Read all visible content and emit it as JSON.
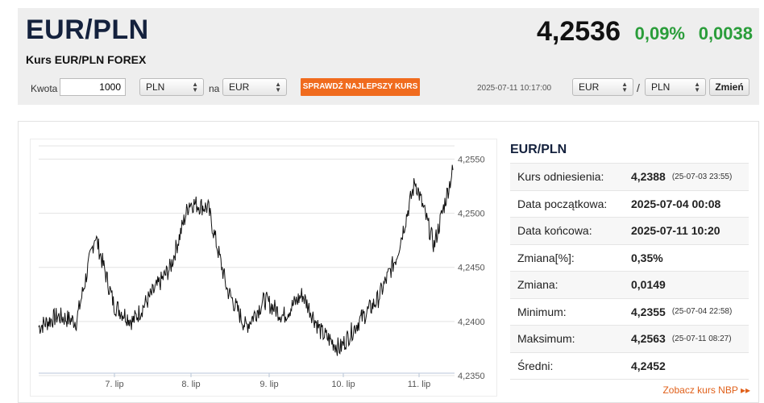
{
  "header": {
    "pair": "EUR/PLN",
    "subtitle": "Kurs EUR/PLN FOREX",
    "price": "4,2536",
    "change_pct": "0,09%",
    "change_abs": "0,0038"
  },
  "converter": {
    "amount_label": "Kwota",
    "amount_value": "1000",
    "from_currency": "PLN",
    "on_label": "na",
    "to_currency": "EUR",
    "best_rate_button": "SPRAWDŹ NAJLEPSZY KURS",
    "timestamp": "2025-07-11 10:17:00",
    "pair_base": "EUR",
    "slash": "/",
    "pair_quote": "PLN",
    "change_button": "Zmień"
  },
  "info": {
    "title": "EUR/PLN",
    "rows": [
      {
        "label": "Kurs odniesienia:",
        "value": "4,2388",
        "detail": "(25-07-03 23:55)"
      },
      {
        "label": "Data początkowa:",
        "value": "2025-07-04 00:08",
        "detail": ""
      },
      {
        "label": "Data końcowa:",
        "value": "2025-07-11 10:20",
        "detail": ""
      },
      {
        "label": "Zmiana[%]:",
        "value": "0,35%",
        "detail": ""
      },
      {
        "label": "Zmiana:",
        "value": "0,0149",
        "detail": ""
      },
      {
        "label": "Minimum:",
        "value": "4,2355",
        "detail": "(25-07-04 22:58)"
      },
      {
        "label": "Maksimum:",
        "value": "4,2563",
        "detail": "(25-07-11 08:27)"
      },
      {
        "label": "Średni:",
        "value": "4,2452",
        "detail": ""
      }
    ],
    "nbp_link": "Zobacz kurs NBP ▸▸"
  },
  "chart_data": {
    "type": "line",
    "x_ticks": [
      "7. lip",
      "8. lip",
      "9. lip",
      "10. lip",
      "11. lip"
    ],
    "y_ticks": [
      "4,2350",
      "4,2400",
      "4,2450",
      "4,2500",
      "4,2550"
    ],
    "ylim": [
      4.235,
      4.256
    ],
    "grid": true,
    "x": [
      "06-07-00",
      "06-07-06",
      "06-07-12",
      "06-07-18",
      "07-07-00",
      "07-07-06",
      "07-07-12",
      "07-07-18",
      "08-07-00",
      "08-07-06",
      "08-07-12",
      "08-07-18",
      "09-07-00",
      "09-07-06",
      "09-07-12",
      "09-07-18",
      "10-07-00",
      "10-07-06",
      "10-07-12",
      "10-07-18",
      "11-07-00",
      "11-07-06",
      "11-07-12"
    ],
    "values": [
      4.2395,
      4.2405,
      4.24,
      4.248,
      4.2415,
      4.24,
      4.2425,
      4.245,
      4.251,
      4.2505,
      4.243,
      4.2395,
      4.242,
      4.2405,
      4.2425,
      4.239,
      4.2375,
      4.24,
      4.242,
      4.246,
      4.253,
      4.247,
      4.254
    ]
  }
}
